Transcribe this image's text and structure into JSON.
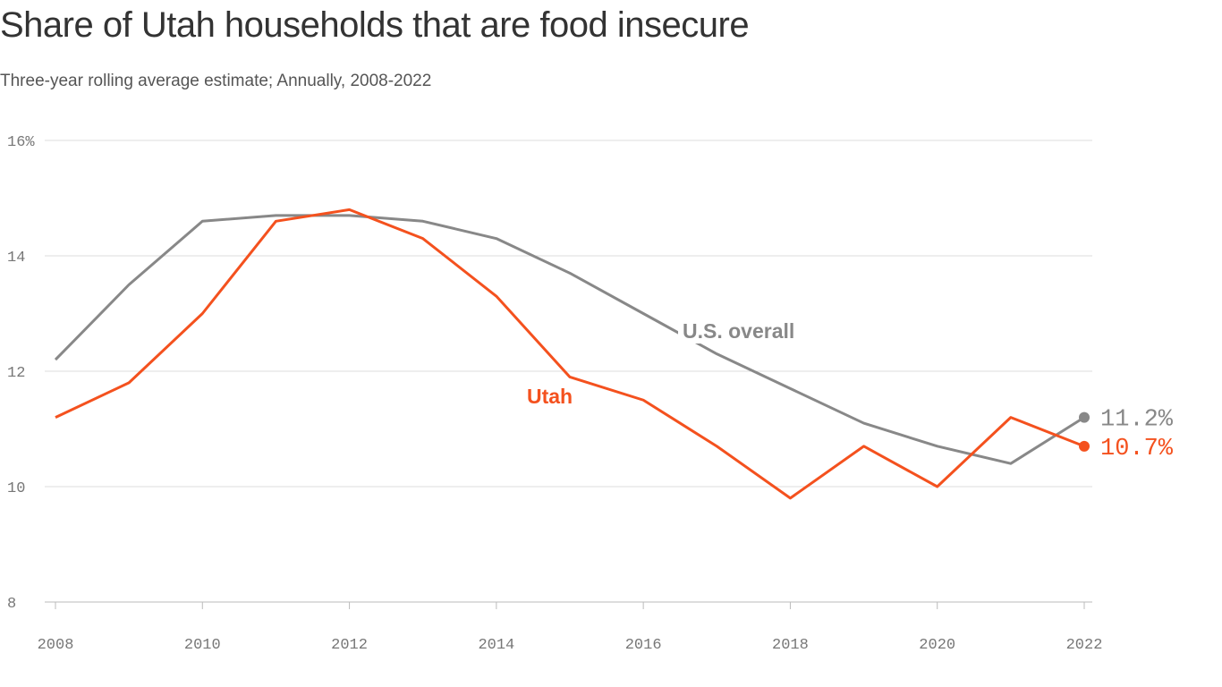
{
  "chart_data": {
    "type": "line",
    "title": "Share of Utah households that are food insecure",
    "subtitle": "Three-year rolling average estimate; Annually, 2008-2022",
    "x": [
      2008,
      2009,
      2010,
      2011,
      2012,
      2013,
      2014,
      2015,
      2016,
      2017,
      2018,
      2019,
      2020,
      2021,
      2022
    ],
    "xticks": [
      "2008",
      "2010",
      "2012",
      "2014",
      "2016",
      "2018",
      "2020",
      "2022"
    ],
    "yticks": [
      "16%",
      "14",
      "12",
      "10",
      "8"
    ],
    "ylim": [
      8,
      16
    ],
    "grid": true,
    "series": [
      {
        "name": "U.S. overall",
        "color": "#888888",
        "end_label": "11.2%",
        "values": [
          12.2,
          13.5,
          14.6,
          14.7,
          14.7,
          14.6,
          14.3,
          13.7,
          13.0,
          12.3,
          11.7,
          11.1,
          10.7,
          10.4,
          11.2
        ]
      },
      {
        "name": "Utah",
        "color": "#f4511e",
        "end_label": "10.7%",
        "values": [
          11.2,
          11.8,
          13.0,
          14.6,
          14.8,
          14.3,
          13.3,
          11.9,
          11.5,
          10.7,
          9.8,
          10.7,
          10.0,
          11.2,
          10.7
        ]
      }
    ]
  }
}
